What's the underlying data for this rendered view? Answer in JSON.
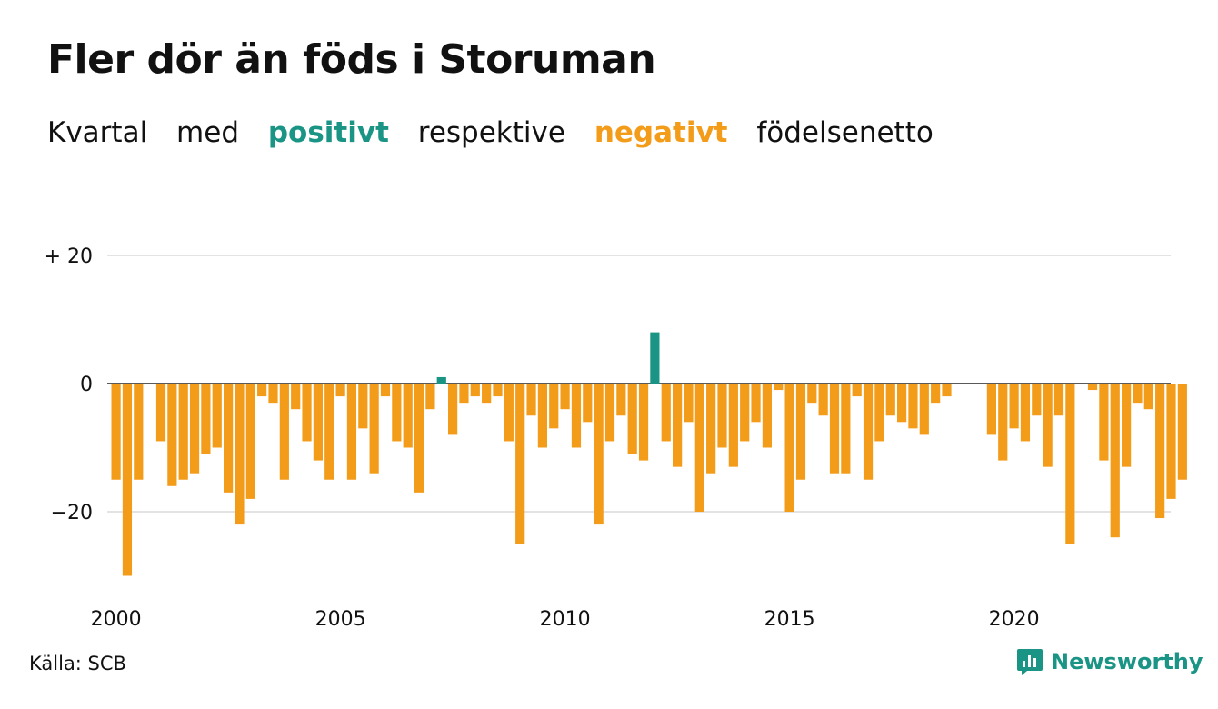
{
  "title": "Fler dör än föds i Storuman",
  "subtitle": {
    "w1": "Kvartal",
    "w2": "med",
    "positive": "positivt",
    "w3": "respektive",
    "negative": "negativt",
    "w4": "födelsenetto"
  },
  "source": "Källa: SCB",
  "brand": {
    "name": "Newsworthy",
    "icon": "newsworthy-logo-icon"
  },
  "colors": {
    "positive": "#1a9484",
    "negative": "#f39c1a",
    "grid": "#e3e3e3"
  },
  "chart_data": {
    "type": "bar",
    "title": "Fler dör än föds i Storuman",
    "xlabel": "",
    "ylabel": "",
    "ylim": [
      -30,
      20
    ],
    "y_ticks": [
      {
        "value": 20,
        "label": "+ 20"
      },
      {
        "value": 0,
        "label": "0"
      },
      {
        "value": -20,
        "label": "−20"
      }
    ],
    "x_ticks": [
      "2000",
      "2005",
      "2010",
      "2015",
      "2020"
    ],
    "grid": true,
    "start": "2000 Q1",
    "values": [
      -15,
      -30,
      -15,
      0,
      -9,
      -16,
      -15,
      -14,
      -11,
      -10,
      -17,
      -22,
      -18,
      -2,
      -3,
      -15,
      -4,
      -9,
      -12,
      -15,
      -2,
      -15,
      -7,
      -14,
      -2,
      -9,
      -10,
      -17,
      -4,
      1,
      -8,
      -3,
      -2,
      -3,
      -2,
      -9,
      -25,
      -5,
      -10,
      -7,
      -4,
      -10,
      -6,
      -22,
      -9,
      -5,
      -11,
      -12,
      8,
      -9,
      -13,
      -6,
      -20,
      -14,
      -10,
      -13,
      -9,
      -6,
      -10,
      -1,
      -20,
      -15,
      -3,
      -5,
      -14,
      -14,
      -2,
      -15,
      -9,
      -5,
      -6,
      -7,
      -8,
      -3,
      -2,
      0,
      0,
      0,
      -8,
      -12,
      -7,
      -9,
      -5,
      -13,
      -5,
      -25,
      0,
      -1,
      -12,
      -24,
      -13,
      -3,
      -4,
      -21,
      -18,
      -15
    ]
  }
}
